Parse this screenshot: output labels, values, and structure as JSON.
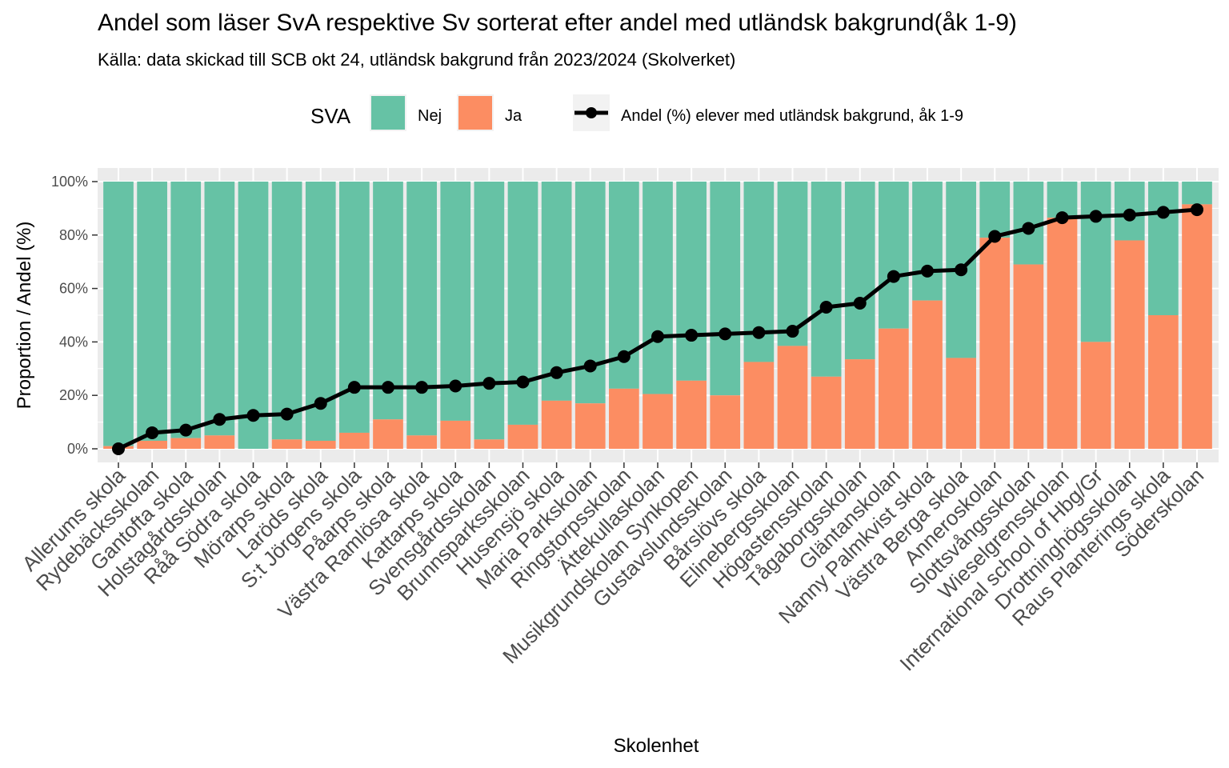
{
  "title": "Andel som läser SvA respektive Sv sorterat efter andel med utländsk bakgrund(åk 1-9)",
  "subtitle": "Källa:  data skickad till SCB okt 24, utländsk bakgrund från 2023/2024 (Skolverket)",
  "legend": {
    "title": "SVA",
    "items": [
      {
        "label": "Nej",
        "color": "#66C2A5"
      },
      {
        "label": "Ja",
        "color": "#FC8D62"
      }
    ],
    "line_label": "Andel (%) elever med utländsk bakgrund, åk 1-9",
    "line_color": "#000000"
  },
  "chart_data": {
    "type": "bar",
    "stacked": true,
    "xlabel": "Skolenhet",
    "ylabel": "Proportion / Andel (%)",
    "ylim": [
      0,
      100
    ],
    "yticks": [
      "0%",
      "20%",
      "40%",
      "60%",
      "80%",
      "100%"
    ],
    "grid": true,
    "legend_position": "top",
    "categories": [
      "Allerums skola",
      "Rydebäcksskolan",
      "Gantofta skola",
      "Holstagårdsskolan",
      "Råå Södra skola",
      "Mörarps skola",
      "Laröds skola",
      "S:t Jörgens skola",
      "Påarps skola",
      "Västra Ramlösa skola",
      "Kattarps skola",
      "Svensgårdsskolan",
      "Brunnsparksskolan",
      "Husensjö skola",
      "Maria Parkskolan",
      "Ringstorpsskolan",
      "Ättekullaskolan",
      "Musikgrundskolan Synkopen",
      "Gustavslundsskolan",
      "Bårslövs skola",
      "Elinebergsskolan",
      "Högastensskolan",
      "Tågaborgsskolan",
      "Gläntanskolan",
      "Nanny Palmkvist skola",
      "Västra Berga skola",
      "Anneroskolan",
      "Slottsvångsskolan",
      "Wieselgrensskolan",
      "International school of Hbg/Gr",
      "Drottninghögsskolan",
      "Raus Planterings skola",
      "Söderskolan"
    ],
    "series": [
      {
        "name": "Ja",
        "values": [
          1,
          3,
          4,
          5,
          0,
          3.5,
          3,
          6,
          11,
          5,
          10.5,
          3.5,
          9,
          18,
          17,
          22.5,
          20.5,
          25.5,
          20,
          32.5,
          38.5,
          27,
          33.5,
          45,
          55.5,
          34,
          79,
          69,
          86.5,
          40,
          78,
          50,
          91.5
        ]
      },
      {
        "name": "Nej",
        "values": [
          99,
          97,
          96,
          95,
          100,
          96.5,
          97,
          94,
          89,
          95,
          89.5,
          96.5,
          91,
          82,
          83,
          77.5,
          79.5,
          74.5,
          80,
          67.5,
          61.5,
          73,
          66.5,
          55,
          44.5,
          66,
          21,
          31,
          13.5,
          60,
          22,
          50,
          8.5
        ]
      },
      {
        "name": "Andel (%) elever med utländsk bakgrund, åk 1-9",
        "type": "line",
        "values": [
          0,
          6,
          7,
          11,
          12.5,
          13,
          17,
          23,
          23,
          23,
          23.5,
          24.5,
          25,
          28.5,
          31,
          34.5,
          42,
          42.5,
          43,
          43.5,
          44,
          53,
          54.5,
          64.5,
          66.5,
          67,
          79.5,
          82.5,
          86.5,
          87,
          87.5,
          88.5,
          89.5
        ]
      }
    ]
  }
}
